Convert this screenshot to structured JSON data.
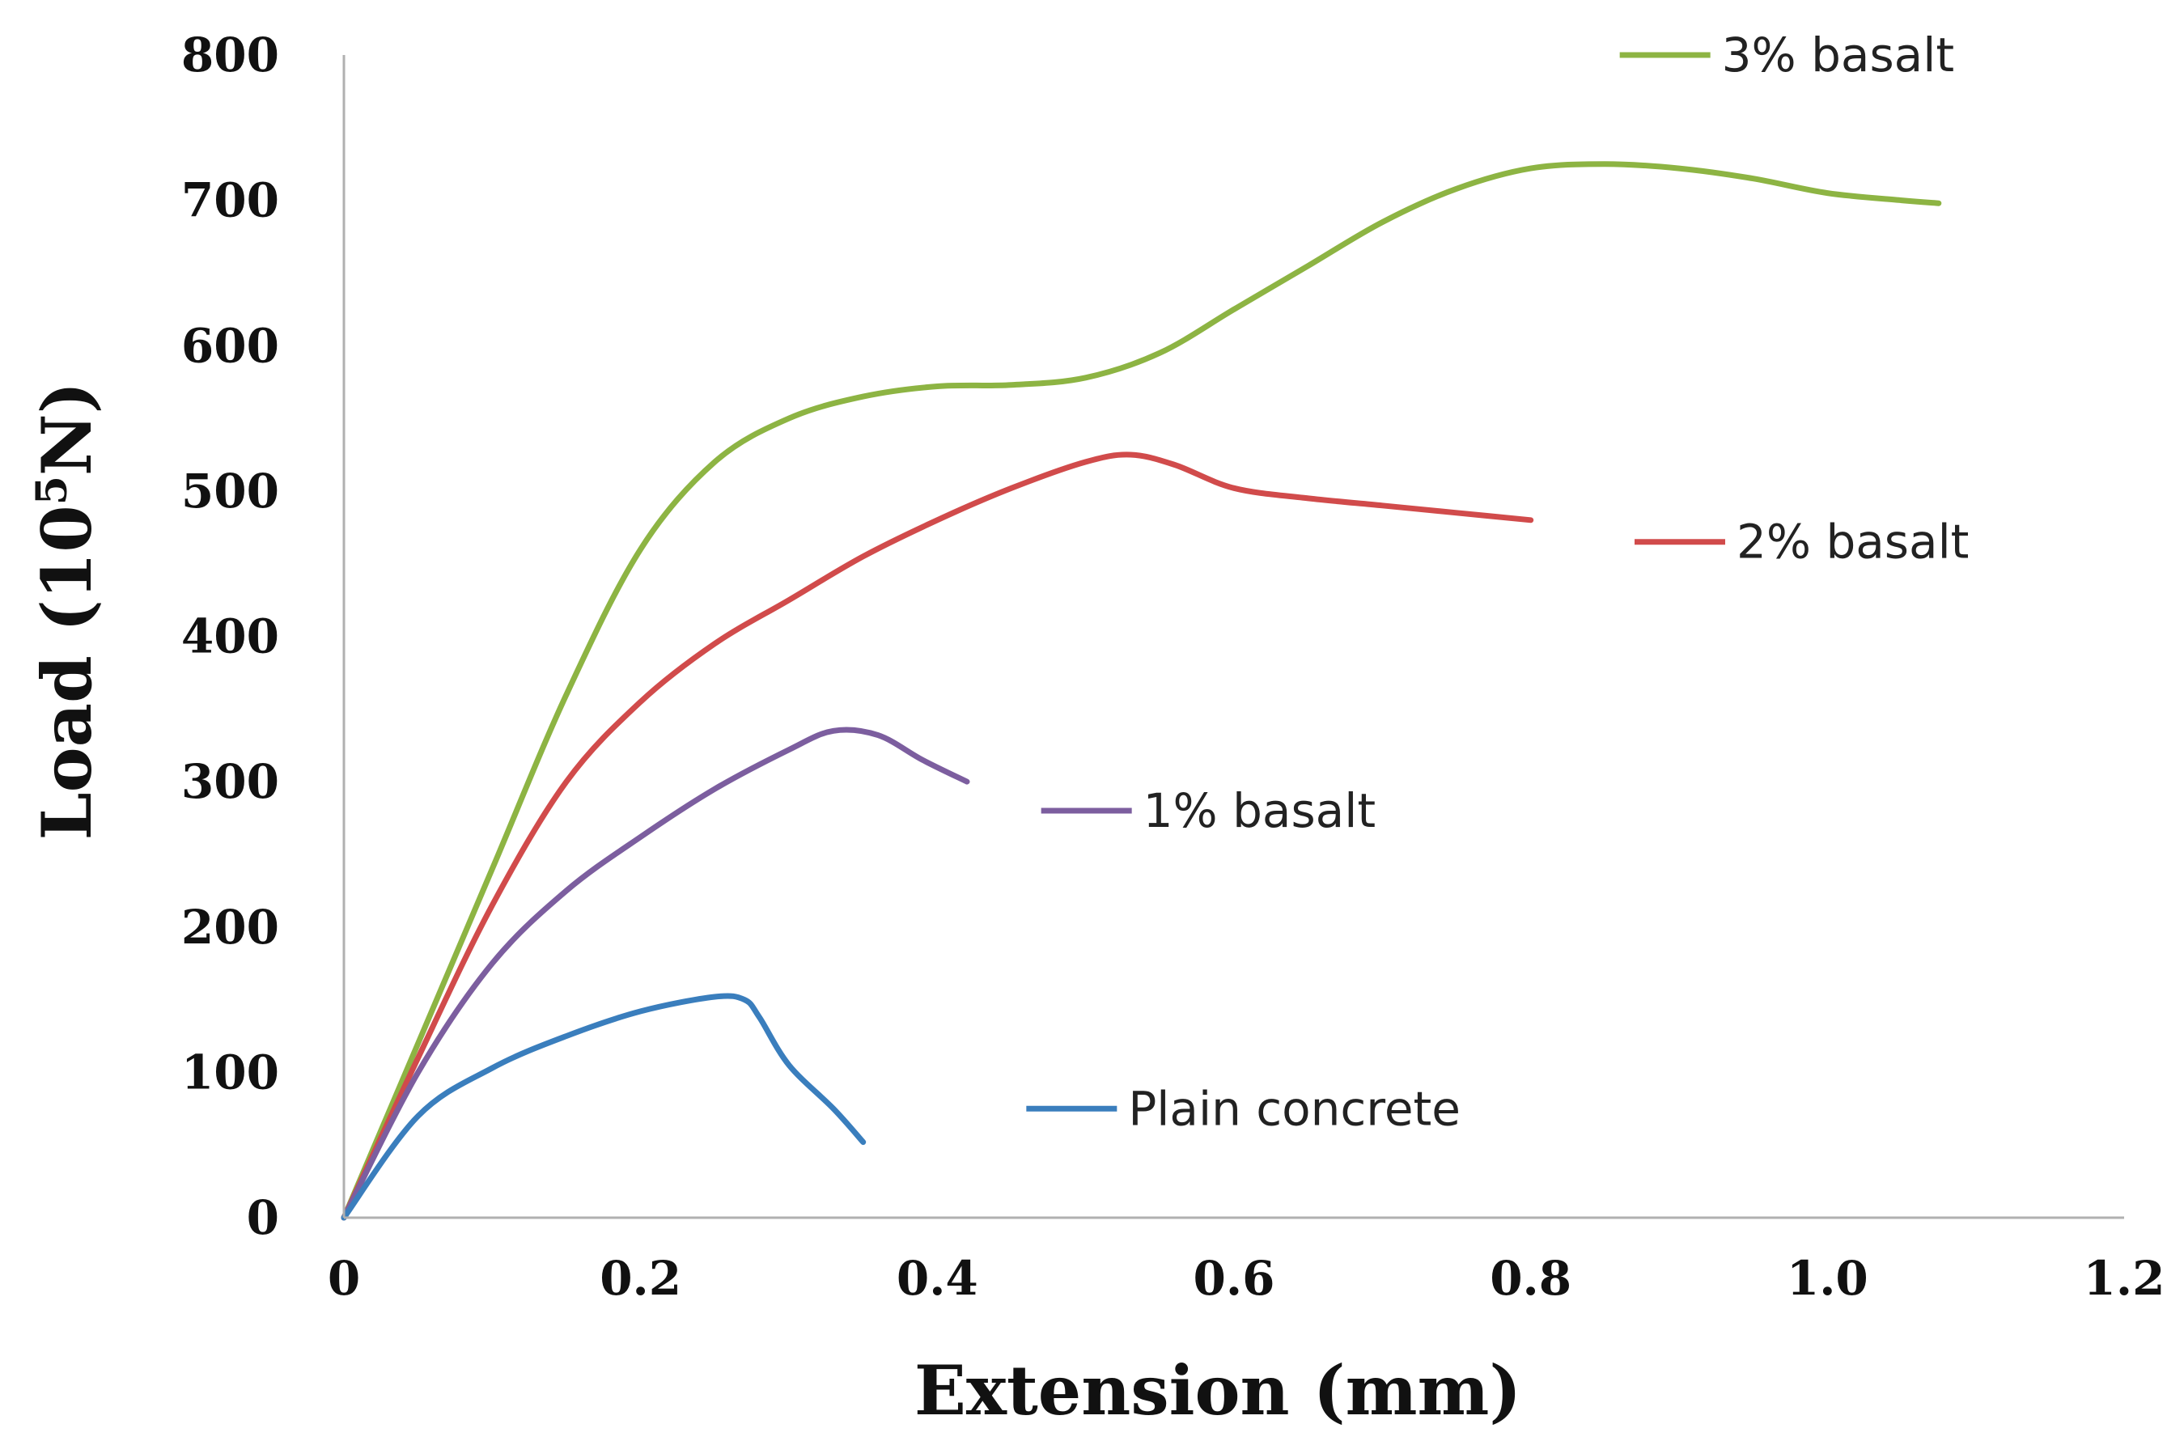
{
  "chart_data": {
    "type": "line",
    "title": "",
    "xlabel": "Extension (mm)",
    "ylabel_prefix": "Load (10",
    "ylabel_sup": "5",
    "ylabel_suffix": "N)",
    "xlim": [
      0,
      1.2
    ],
    "ylim": [
      0,
      800
    ],
    "x_ticks": [
      0,
      0.2,
      0.4,
      0.6,
      0.8,
      1.0,
      1.2
    ],
    "x_tick_labels": [
      "0",
      "0.2",
      "0.4",
      "0.6",
      "0.8",
      "1.0",
      "1.2"
    ],
    "y_ticks": [
      0,
      100,
      200,
      300,
      400,
      500,
      600,
      700,
      800
    ],
    "y_tick_labels": [
      "0",
      "100",
      "200",
      "300",
      "400",
      "500",
      "600",
      "700",
      "800"
    ],
    "grid": false,
    "legend": "inline labels next to curve ends",
    "series": [
      {
        "name": "3% basalt",
        "color": "#8DB443",
        "label_anchor": [
          0.86,
          800
        ],
        "points": [
          [
            0,
            0
          ],
          [
            0.05,
            120
          ],
          [
            0.1,
            240
          ],
          [
            0.15,
            360
          ],
          [
            0.2,
            460
          ],
          [
            0.25,
            520
          ],
          [
            0.3,
            550
          ],
          [
            0.35,
            565
          ],
          [
            0.4,
            572
          ],
          [
            0.45,
            573
          ],
          [
            0.5,
            578
          ],
          [
            0.55,
            595
          ],
          [
            0.6,
            625
          ],
          [
            0.65,
            655
          ],
          [
            0.7,
            685
          ],
          [
            0.75,
            708
          ],
          [
            0.8,
            722
          ],
          [
            0.85,
            725
          ],
          [
            0.9,
            722
          ],
          [
            0.95,
            715
          ],
          [
            1.0,
            705
          ],
          [
            1.05,
            700
          ],
          [
            1.075,
            698
          ]
        ]
      },
      {
        "name": "2% basalt",
        "color": "#D14B4B",
        "label_anchor": [
          0.87,
          465
        ],
        "points": [
          [
            0,
            0
          ],
          [
            0.05,
            110
          ],
          [
            0.1,
            215
          ],
          [
            0.15,
            300
          ],
          [
            0.2,
            355
          ],
          [
            0.25,
            395
          ],
          [
            0.3,
            425
          ],
          [
            0.35,
            455
          ],
          [
            0.4,
            480
          ],
          [
            0.45,
            502
          ],
          [
            0.5,
            520
          ],
          [
            0.53,
            525
          ],
          [
            0.56,
            518
          ],
          [
            0.6,
            502
          ],
          [
            0.65,
            495
          ],
          [
            0.7,
            490
          ],
          [
            0.75,
            485
          ],
          [
            0.8,
            480
          ]
        ]
      },
      {
        "name": "1% basalt",
        "color": "#7C5E9F",
        "label_anchor": [
          0.47,
          280
        ],
        "points": [
          [
            0,
            0
          ],
          [
            0.05,
            100
          ],
          [
            0.1,
            175
          ],
          [
            0.15,
            225
          ],
          [
            0.2,
            262
          ],
          [
            0.25,
            295
          ],
          [
            0.3,
            322
          ],
          [
            0.33,
            335
          ],
          [
            0.36,
            332
          ],
          [
            0.39,
            315
          ],
          [
            0.42,
            300
          ]
        ]
      },
      {
        "name": "Plain concrete",
        "color": "#3A7EBD",
        "label_anchor": [
          0.46,
          75
        ],
        "points": [
          [
            0,
            0
          ],
          [
            0.05,
            70
          ],
          [
            0.1,
            103
          ],
          [
            0.15,
            125
          ],
          [
            0.2,
            142
          ],
          [
            0.25,
            152
          ],
          [
            0.27,
            150
          ],
          [
            0.28,
            138
          ],
          [
            0.3,
            105
          ],
          [
            0.33,
            75
          ],
          [
            0.35,
            52
          ]
        ]
      }
    ]
  }
}
